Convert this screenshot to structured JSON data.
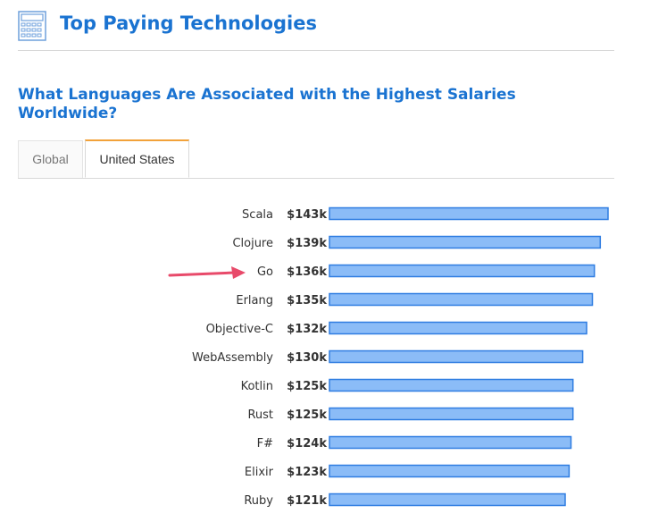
{
  "header": {
    "title": "Top Paying Technologies",
    "icon": "calculator-icon"
  },
  "subtitle": "What Languages Are Associated with the Highest Salaries Worldwide?",
  "tabs": [
    {
      "label": "Global",
      "active": false
    },
    {
      "label": "United States",
      "active": true
    }
  ],
  "colors": {
    "accent": "#1a73d1",
    "bar_fill": "#8bbcf7",
    "bar_stroke": "#2f7de1",
    "arrow": "#e84a6a",
    "tab_active": "#f2a23a"
  },
  "annotation": {
    "type": "arrow",
    "points_to": "Go"
  },
  "chart_data": {
    "type": "bar",
    "orientation": "horizontal",
    "title": "",
    "xlabel": "",
    "ylabel": "",
    "categories": [
      "Scala",
      "Clojure",
      "Go",
      "Erlang",
      "Objective-C",
      "WebAssembly",
      "Kotlin",
      "Rust",
      "F#",
      "Elixir",
      "Ruby"
    ],
    "values": [
      143,
      139,
      136,
      135,
      132,
      130,
      125,
      125,
      124,
      123,
      121
    ],
    "value_labels": [
      "$143k",
      "$139k",
      "$136k",
      "$135k",
      "$132k",
      "$130k",
      "$125k",
      "$125k",
      "$124k",
      "$123k",
      "$121k"
    ],
    "xlim": [
      0,
      143
    ],
    "grid": false,
    "legend": "none"
  }
}
